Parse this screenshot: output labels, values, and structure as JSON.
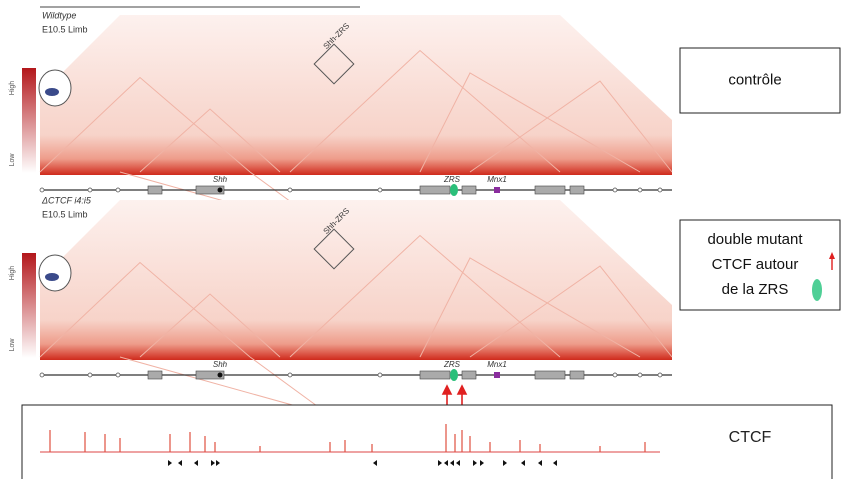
{
  "panels": [
    {
      "genotype": "Wildtype",
      "stage": "E10.5 Limb",
      "scale_high": "High",
      "scale_low": "Low",
      "box_label": "Shh-ZRS",
      "genes": {
        "shh": "Shh",
        "zrs": "ZRS",
        "mnx1": "Mnx1"
      },
      "annotation": [
        "contrôle"
      ]
    },
    {
      "genotype": "ΔCTCF i4:i5",
      "stage": "E10.5 Limb",
      "scale_high": "High",
      "scale_low": "Low",
      "box_label": "Shh-ZRS",
      "genes": {
        "shh": "Shh",
        "zrs": "ZRS",
        "mnx1": "Mnx1"
      },
      "annotation": [
        "double mutant",
        "CTCF autour",
        "de la ZRS"
      ]
    }
  ],
  "ctcf_track": {
    "label": "CTCF"
  }
}
